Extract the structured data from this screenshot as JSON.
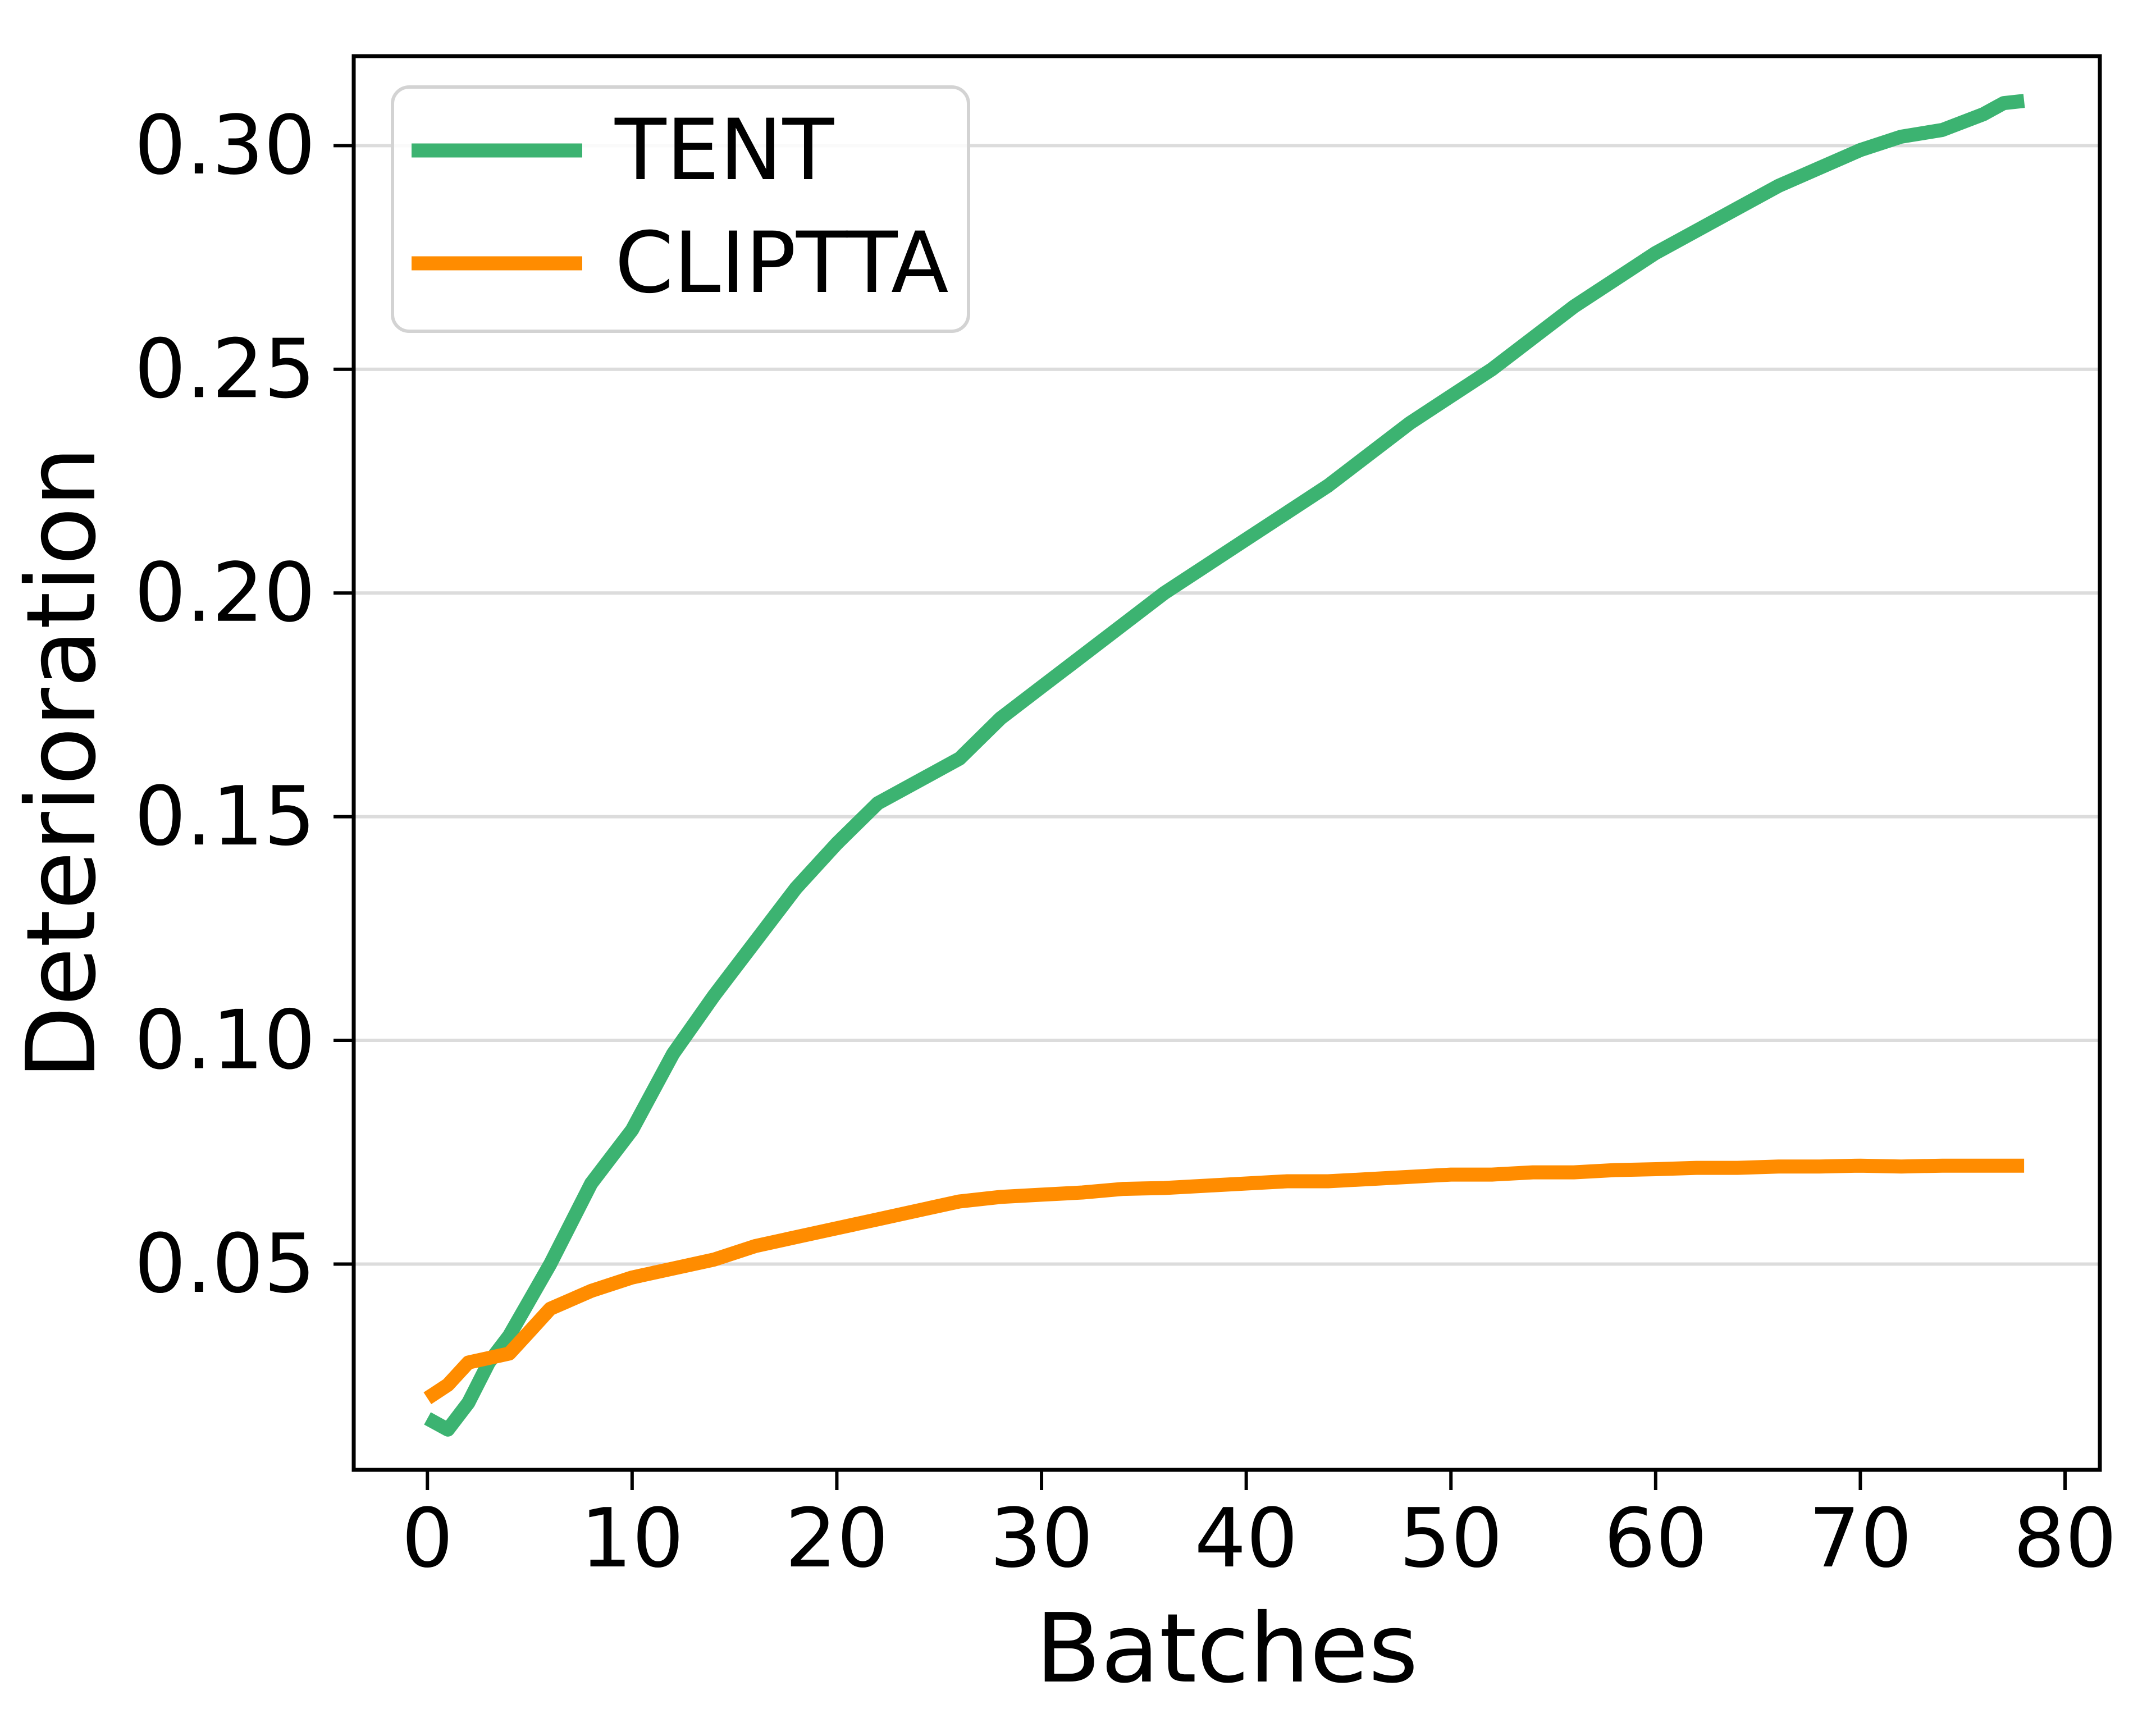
{
  "figure": {
    "background": "#ffffff"
  },
  "chart_data": {
    "type": "line",
    "title": "",
    "xlabel": "Batches",
    "ylabel": "Deterioration",
    "xlim": [
      -3.6,
      81.7
    ],
    "ylim": [
      0.004,
      0.32
    ],
    "xticks": [
      0,
      10,
      20,
      30,
      40,
      50,
      60,
      70,
      80
    ],
    "xtick_labels": [
      "0",
      "10",
      "20",
      "30",
      "40",
      "50",
      "60",
      "70",
      "80"
    ],
    "yticks": [
      0.05,
      0.1,
      0.15,
      0.2,
      0.25,
      0.3
    ],
    "ytick_labels": [
      "0.05",
      "0.10",
      "0.15",
      "0.20",
      "0.25",
      "0.30"
    ],
    "grid": "horizontal-only",
    "grid_color": "#dcdcdc",
    "spine_color": "#000000",
    "legend": {
      "location": "upper left",
      "border_color": "#d3d3d3",
      "labels": [
        "TENT",
        "CLIPTTA"
      ]
    },
    "series": [
      {
        "name": "TENT",
        "color": "#3cb371",
        "x": [
          0,
          1,
          2,
          3,
          4,
          5,
          6,
          8,
          10,
          12,
          14,
          16,
          18,
          20,
          22,
          24,
          26,
          28,
          30,
          32,
          34,
          36,
          38,
          40,
          42,
          44,
          46,
          48,
          50,
          52,
          54,
          56,
          58,
          60,
          62,
          64,
          66,
          68,
          70,
          72,
          74,
          76,
          77,
          78
        ],
        "y": [
          0.0155,
          0.013,
          0.019,
          0.028,
          0.034,
          0.042,
          0.05,
          0.068,
          0.08,
          0.097,
          0.11,
          0.122,
          0.134,
          0.144,
          0.153,
          0.158,
          0.163,
          0.172,
          0.179,
          0.186,
          0.193,
          0.2,
          0.206,
          0.212,
          0.218,
          0.224,
          0.231,
          0.238,
          0.244,
          0.25,
          0.257,
          0.264,
          0.27,
          0.276,
          0.281,
          0.286,
          0.291,
          0.295,
          0.299,
          0.302,
          0.3035,
          0.307,
          0.3095,
          0.31
        ]
      },
      {
        "name": "CLIPTTA",
        "color": "#ff8c00",
        "x": [
          0,
          1,
          2,
          3,
          4,
          5,
          6,
          8,
          10,
          12,
          14,
          16,
          18,
          20,
          22,
          24,
          26,
          28,
          30,
          32,
          34,
          36,
          38,
          40,
          42,
          44,
          46,
          48,
          50,
          52,
          54,
          56,
          58,
          60,
          62,
          64,
          66,
          68,
          70,
          72,
          74,
          76,
          77,
          78
        ],
        "y": [
          0.02,
          0.023,
          0.028,
          0.029,
          0.03,
          0.035,
          0.04,
          0.044,
          0.047,
          0.049,
          0.051,
          0.054,
          0.056,
          0.058,
          0.06,
          0.062,
          0.064,
          0.065,
          0.0655,
          0.066,
          0.0668,
          0.067,
          0.0675,
          0.068,
          0.0685,
          0.0685,
          0.069,
          0.0695,
          0.07,
          0.07,
          0.0705,
          0.0705,
          0.071,
          0.0712,
          0.0715,
          0.0715,
          0.0718,
          0.0718,
          0.072,
          0.0718,
          0.072,
          0.072,
          0.072,
          0.072
        ]
      }
    ]
  }
}
